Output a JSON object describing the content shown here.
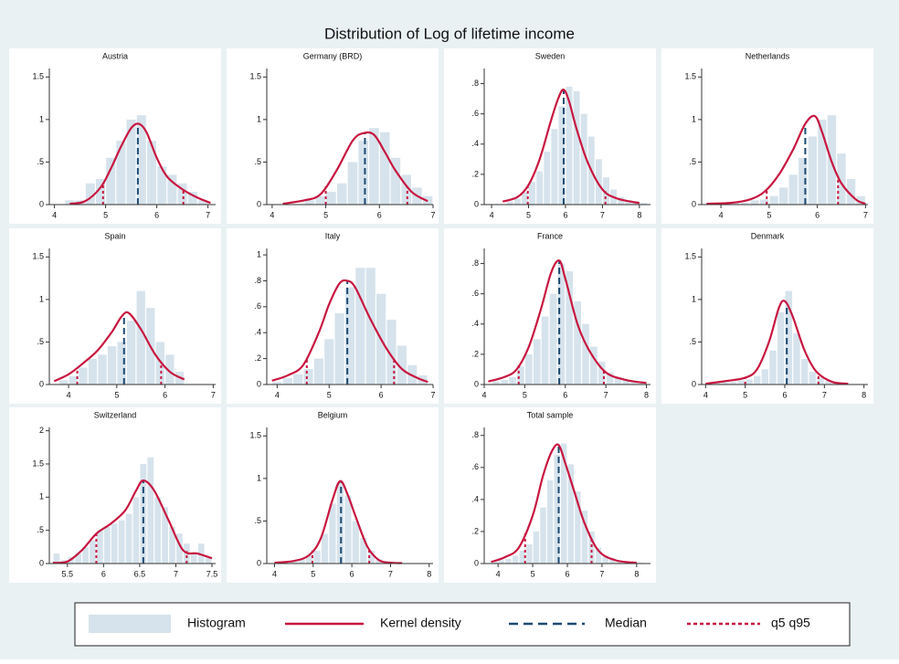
{
  "title": "Distribution of Log of lifetime income",
  "legend": [
    {
      "name": "Histogram",
      "color": "#d6e3ec"
    },
    {
      "name": "Kernel density",
      "color": "#c8163f"
    },
    {
      "name": "Median",
      "color": "#1c4a72"
    },
    {
      "name": "q5 q95",
      "color": "#c8163f"
    }
  ],
  "chart_data": [
    {
      "type": "histogram",
      "title": "Austria",
      "bins": [
        4.2,
        4.4,
        4.6,
        4.8,
        5.0,
        5.2,
        5.4,
        5.6,
        5.8,
        6.0,
        6.2,
        6.4,
        6.6,
        6.8,
        7.0
      ],
      "values": [
        0.05,
        0.05,
        0.25,
        0.3,
        0.55,
        0.75,
        1.0,
        1.05,
        0.75,
        0.45,
        0.35,
        0.25,
        0.15,
        0.05
      ],
      "kde": {
        "x": [
          4.3,
          4.6,
          4.9,
          5.1,
          5.3,
          5.5,
          5.65,
          5.8,
          6.0,
          6.2,
          6.5,
          6.8,
          7.05
        ],
        "y": [
          0.01,
          0.04,
          0.2,
          0.42,
          0.68,
          0.9,
          0.95,
          0.85,
          0.55,
          0.33,
          0.18,
          0.08,
          0.02
        ]
      },
      "median": 5.63,
      "q5": 4.95,
      "q95": 6.52,
      "xlim": [
        3.9,
        7.15
      ],
      "xticks": [
        4,
        5,
        6,
        7
      ],
      "ylim": [
        0,
        1.6
      ],
      "yticks": [
        0,
        {
          "value": 0.5,
          "label": ".5"
        },
        1,
        1.5
      ]
    },
    {
      "type": "histogram",
      "title": "Germany (BRD)",
      "bins": [
        4.6,
        4.8,
        5.0,
        5.2,
        5.4,
        5.6,
        5.8,
        6.0,
        6.2,
        6.4,
        6.6,
        6.8,
        7.0
      ],
      "values": [
        0.05,
        0.1,
        0.15,
        0.25,
        0.5,
        0.75,
        0.9,
        0.85,
        0.55,
        0.35,
        0.2,
        0.1
      ],
      "kde": {
        "x": [
          4.2,
          4.6,
          4.9,
          5.2,
          5.5,
          5.7,
          5.9,
          6.1,
          6.3,
          6.6,
          6.9
        ],
        "y": [
          0.01,
          0.05,
          0.12,
          0.4,
          0.75,
          0.84,
          0.82,
          0.62,
          0.4,
          0.15,
          0.04
        ]
      },
      "median": 5.73,
      "q5": 5.0,
      "q95": 6.52,
      "xlim": [
        3.9,
        7.0
      ],
      "xticks": [
        4,
        5,
        6,
        7
      ],
      "ylim": [
        0,
        1.6
      ],
      "yticks": [
        0,
        {
          "value": 0.5,
          "label": ".5"
        },
        1,
        1.5
      ]
    },
    {
      "type": "histogram",
      "title": "Sweden",
      "bins": [
        4.4,
        4.6,
        4.8,
        5.0,
        5.2,
        5.4,
        5.6,
        5.8,
        6.0,
        6.2,
        6.4,
        6.6,
        6.8,
        7.0,
        7.2,
        7.4,
        7.6,
        7.8,
        8.0,
        8.2
      ],
      "values": [
        0.02,
        0.04,
        0.08,
        0.15,
        0.22,
        0.35,
        0.5,
        0.65,
        0.78,
        0.75,
        0.6,
        0.45,
        0.3,
        0.18,
        0.1,
        0.05,
        0.03,
        0.02,
        0.01
      ],
      "kde": {
        "x": [
          4.3,
          4.7,
          5.0,
          5.3,
          5.6,
          5.8,
          5.95,
          6.1,
          6.3,
          6.6,
          7.0,
          7.4,
          8.0
        ],
        "y": [
          0.02,
          0.05,
          0.13,
          0.3,
          0.55,
          0.7,
          0.76,
          0.68,
          0.5,
          0.28,
          0.1,
          0.04,
          0.01
        ]
      },
      "median": 5.95,
      "q5": 4.98,
      "q95": 7.08,
      "xlim": [
        3.8,
        8.3
      ],
      "xticks": [
        4,
        5,
        6,
        7,
        8
      ],
      "ylim": [
        0,
        0.9
      ],
      "yticks": [
        0,
        {
          "value": 0.2,
          "label": ".2"
        },
        {
          "value": 0.4,
          "label": ".4"
        },
        {
          "value": 0.6,
          "label": ".6"
        },
        {
          "value": 0.8,
          "label": ".8"
        }
      ]
    },
    {
      "type": "histogram",
      "title": "Netherlands",
      "bins": [
        4.0,
        4.2,
        4.4,
        4.6,
        4.8,
        5.0,
        5.2,
        5.4,
        5.6,
        5.8,
        6.0,
        6.2,
        6.4,
        6.6,
        6.8,
        7.0
      ],
      "values": [
        0.01,
        0.02,
        0.02,
        0.05,
        0.06,
        0.1,
        0.2,
        0.35,
        0.55,
        0.8,
        1.0,
        1.05,
        0.6,
        0.3,
        0.1
      ],
      "kde": {
        "x": [
          3.7,
          4.2,
          4.6,
          4.9,
          5.2,
          5.5,
          5.75,
          5.95,
          6.1,
          6.3,
          6.5,
          6.8,
          7.0
        ],
        "y": [
          0.01,
          0.02,
          0.06,
          0.15,
          0.35,
          0.65,
          0.95,
          1.04,
          0.85,
          0.5,
          0.25,
          0.06,
          0.01
        ]
      },
      "median": 5.75,
      "q5": 4.95,
      "q95": 6.43,
      "xlim": [
        3.6,
        7.05
      ],
      "xticks": [
        4,
        5,
        6,
        7
      ],
      "ylim": [
        0,
        1.6
      ],
      "yticks": [
        0,
        {
          "value": 0.5,
          "label": ".5"
        },
        1,
        1.5
      ]
    },
    {
      "type": "histogram",
      "title": "Spain",
      "bins": [
        3.8,
        4.0,
        4.2,
        4.4,
        4.6,
        4.8,
        5.0,
        5.2,
        5.4,
        5.6,
        5.8,
        6.0,
        6.2,
        6.4
      ],
      "values": [
        0.05,
        0.1,
        0.2,
        0.3,
        0.35,
        0.45,
        0.5,
        0.75,
        1.1,
        0.9,
        0.5,
        0.35,
        0.15
      ],
      "kde": {
        "x": [
          3.7,
          4.0,
          4.3,
          4.6,
          4.9,
          5.1,
          5.25,
          5.5,
          5.8,
          6.1,
          6.4
        ],
        "y": [
          0.04,
          0.12,
          0.25,
          0.4,
          0.62,
          0.8,
          0.84,
          0.65,
          0.35,
          0.15,
          0.06
        ]
      },
      "median": 5.15,
      "q5": 4.18,
      "q95": 5.92,
      "xlim": [
        3.6,
        7.05
      ],
      "xticks": [
        4,
        5,
        6,
        7
      ],
      "ylim": [
        0,
        1.6
      ],
      "yticks": [
        0,
        {
          "value": 0.5,
          "label": ".5"
        },
        1,
        1.5
      ]
    },
    {
      "type": "histogram",
      "title": "Italy",
      "bins": [
        3.9,
        4.1,
        4.3,
        4.5,
        4.7,
        4.9,
        5.1,
        5.3,
        5.5,
        5.7,
        5.9,
        6.1,
        6.3,
        6.5,
        6.7,
        6.9
      ],
      "values": [
        0.02,
        0.05,
        0.08,
        0.12,
        0.2,
        0.35,
        0.55,
        0.75,
        0.9,
        0.9,
        0.7,
        0.5,
        0.3,
        0.15,
        0.07
      ],
      "kde": {
        "x": [
          3.9,
          4.2,
          4.5,
          4.8,
          5.0,
          5.2,
          5.35,
          5.5,
          5.8,
          6.1,
          6.4,
          6.7,
          6.9
        ],
        "y": [
          0.03,
          0.07,
          0.15,
          0.4,
          0.62,
          0.78,
          0.8,
          0.75,
          0.5,
          0.28,
          0.12,
          0.05,
          0.02
        ]
      },
      "median": 5.35,
      "q5": 4.57,
      "q95": 6.25,
      "xlim": [
        3.8,
        7.0
      ],
      "xticks": [
        4,
        5,
        6,
        7
      ],
      "ylim": [
        0,
        1.05
      ],
      "yticks": [
        0,
        {
          "value": 0.2,
          "label": ".2"
        },
        {
          "value": 0.4,
          "label": ".4"
        },
        {
          "value": 0.6,
          "label": ".6"
        },
        {
          "value": 0.8,
          "label": ".8"
        },
        1
      ]
    },
    {
      "type": "histogram",
      "title": "France",
      "bins": [
        4.2,
        4.4,
        4.6,
        4.8,
        5.0,
        5.2,
        5.4,
        5.6,
        5.8,
        6.0,
        6.2,
        6.4,
        6.6,
        6.8,
        7.0,
        7.2,
        7.4,
        7.6,
        7.8,
        8.0
      ],
      "values": [
        0.02,
        0.03,
        0.05,
        0.12,
        0.2,
        0.3,
        0.45,
        0.6,
        0.8,
        0.75,
        0.55,
        0.4,
        0.25,
        0.15,
        0.08,
        0.05,
        0.03,
        0.02,
        0.02
      ],
      "kde": {
        "x": [
          4.1,
          4.5,
          4.8,
          5.1,
          5.4,
          5.65,
          5.85,
          6.0,
          6.3,
          6.6,
          7.0,
          7.5,
          8.0
        ],
        "y": [
          0.02,
          0.05,
          0.1,
          0.25,
          0.5,
          0.74,
          0.82,
          0.7,
          0.4,
          0.22,
          0.08,
          0.03,
          0.01
        ]
      },
      "median": 5.85,
      "q5": 4.85,
      "q95": 6.95,
      "xlim": [
        4.0,
        8.1
      ],
      "xticks": [
        4,
        5,
        6,
        7,
        8
      ],
      "ylim": [
        0,
        0.9
      ],
      "yticks": [
        0,
        {
          "value": 0.2,
          "label": ".2"
        },
        {
          "value": 0.4,
          "label": ".4"
        },
        {
          "value": 0.6,
          "label": ".6"
        },
        {
          "value": 0.8,
          "label": ".8"
        }
      ]
    },
    {
      "type": "histogram",
      "title": "Denmark",
      "bins": [
        4.2,
        4.4,
        4.6,
        4.8,
        5.0,
        5.2,
        5.4,
        5.6,
        5.8,
        6.0,
        6.2,
        6.4,
        6.6,
        6.8,
        7.0,
        7.2,
        7.4,
        7.6
      ],
      "values": [
        0.02,
        0.03,
        0.03,
        0.05,
        0.06,
        0.1,
        0.18,
        0.4,
        0.85,
        1.1,
        0.6,
        0.3,
        0.15,
        0.08,
        0.04,
        0.02,
        0.01
      ],
      "kde": {
        "x": [
          4.0,
          4.5,
          5.0,
          5.3,
          5.6,
          5.85,
          6.0,
          6.2,
          6.5,
          6.8,
          7.2,
          7.6
        ],
        "y": [
          0.01,
          0.04,
          0.08,
          0.18,
          0.5,
          0.9,
          0.98,
          0.8,
          0.4,
          0.15,
          0.03,
          0.01
        ]
      },
      "median": 6.05,
      "q5": 5.0,
      "q95": 6.85,
      "xlim": [
        3.9,
        8.1
      ],
      "xticks": [
        4,
        5,
        6,
        7,
        8
      ],
      "ylim": [
        0,
        1.6
      ],
      "yticks": [
        0,
        {
          "value": 0.5,
          "label": ".5"
        },
        1,
        1.5
      ]
    },
    {
      "type": "histogram",
      "title": "Switzerland",
      "bins": [
        5.3,
        5.4,
        5.5,
        5.6,
        5.7,
        5.8,
        5.9,
        6.0,
        6.1,
        6.2,
        6.3,
        6.4,
        6.5,
        6.6,
        6.7,
        6.8,
        6.9,
        7.0,
        7.1,
        7.2,
        7.3,
        7.4,
        7.5
      ],
      "values": [
        0.15,
        0.05,
        0.1,
        0.15,
        0.25,
        0.35,
        0.5,
        0.55,
        0.6,
        0.65,
        0.75,
        1.0,
        1.5,
        1.6,
        1.0,
        0.85,
        0.55,
        0.45,
        0.3,
        0.15,
        0.3,
        0.1
      ],
      "kde": {
        "x": [
          5.3,
          5.5,
          5.7,
          5.9,
          6.1,
          6.3,
          6.45,
          6.55,
          6.7,
          6.9,
          7.1,
          7.3,
          7.5
        ],
        "y": [
          0.01,
          0.03,
          0.2,
          0.45,
          0.6,
          0.8,
          1.1,
          1.25,
          1.1,
          0.65,
          0.2,
          0.15,
          0.08
        ]
      },
      "median": 6.55,
      "q5": 5.9,
      "q95": 7.15,
      "xlim": [
        5.25,
        7.55
      ],
      "xticks": [
        5.5,
        6,
        6.5,
        7,
        7.5
      ],
      "ylim": [
        0,
        2.05
      ],
      "yticks": [
        0,
        {
          "value": 0.5,
          "label": ".5"
        },
        1,
        1.5,
        2
      ]
    },
    {
      "type": "histogram",
      "title": "Belgium",
      "bins": [
        4.2,
        4.4,
        4.6,
        4.8,
        5.0,
        5.2,
        5.4,
        5.6,
        5.8,
        6.0,
        6.2,
        6.4,
        6.6,
        6.8,
        7.0
      ],
      "values": [
        0.02,
        0.03,
        0.05,
        0.1,
        0.15,
        0.35,
        0.7,
        0.95,
        0.8,
        0.5,
        0.3,
        0.15,
        0.05,
        0.02
      ],
      "kde": {
        "x": [
          4.0,
          4.5,
          4.9,
          5.2,
          5.5,
          5.7,
          5.9,
          6.1,
          6.4,
          6.7,
          7.0,
          7.3
        ],
        "y": [
          0.01,
          0.03,
          0.1,
          0.3,
          0.75,
          0.97,
          0.8,
          0.55,
          0.2,
          0.04,
          0.01,
          0.005
        ]
      },
      "median": 5.72,
      "q5": 4.98,
      "q95": 6.45,
      "xlim": [
        3.8,
        8.1
      ],
      "xticks": [
        4,
        5,
        6,
        7,
        8
      ],
      "ylim": [
        0,
        1.6
      ],
      "yticks": [
        0,
        {
          "value": 0.5,
          "label": ".5"
        },
        1,
        1.5
      ]
    },
    {
      "type": "histogram",
      "title": "Total sample",
      "bins": [
        3.8,
        4.0,
        4.2,
        4.4,
        4.6,
        4.8,
        5.0,
        5.2,
        5.4,
        5.6,
        5.8,
        6.0,
        6.2,
        6.4,
        6.6,
        6.8,
        7.0,
        7.2,
        7.4,
        7.6,
        7.8,
        8.0,
        8.2
      ],
      "values": [
        0.01,
        0.02,
        0.03,
        0.05,
        0.08,
        0.12,
        0.2,
        0.35,
        0.52,
        0.68,
        0.75,
        0.62,
        0.45,
        0.33,
        0.2,
        0.1,
        0.05,
        0.03,
        0.02,
        0.01,
        0.01,
        0.005
      ],
      "kde": {
        "x": [
          3.8,
          4.2,
          4.6,
          5.0,
          5.3,
          5.55,
          5.75,
          5.95,
          6.2,
          6.5,
          6.9,
          7.4,
          8.0
        ],
        "y": [
          0.01,
          0.04,
          0.1,
          0.3,
          0.55,
          0.7,
          0.74,
          0.62,
          0.45,
          0.25,
          0.08,
          0.02,
          0.005
        ]
      },
      "median": 5.75,
      "q5": 4.78,
      "q95": 6.7,
      "xlim": [
        3.6,
        8.4
      ],
      "xticks": [
        4,
        5,
        6,
        7,
        8
      ],
      "ylim": [
        0,
        0.85
      ],
      "yticks": [
        0,
        {
          "value": 0.2,
          "label": ".2"
        },
        {
          "value": 0.4,
          "label": ".4"
        },
        {
          "value": 0.6,
          "label": ".6"
        },
        {
          "value": 0.8,
          "label": ".8"
        }
      ]
    }
  ]
}
